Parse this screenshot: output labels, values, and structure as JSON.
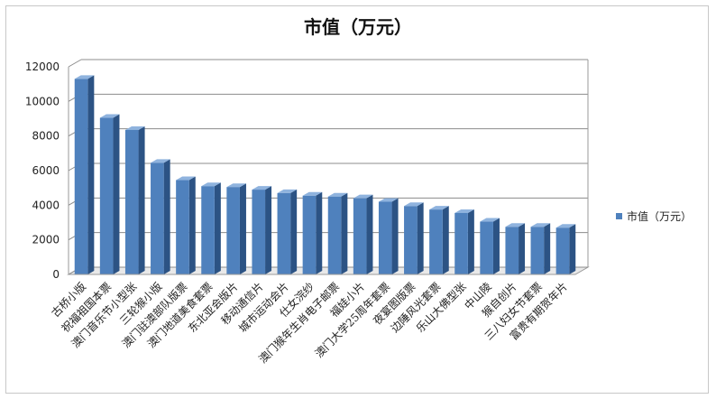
{
  "chart_data": {
    "type": "bar",
    "title": "市值（万元）",
    "categories": [
      "古桥小版",
      "祝福祖国本票",
      "澳门音乐节小型张",
      "三轮猴小版",
      "澳门驻澳部队版票",
      "澳门地道美食套票",
      "东北亚会版片",
      "移动通信片",
      "城市运动会片",
      "仕女浣纱",
      "澳门猴年生肖电子邮票",
      "福娃小片",
      "澳门大学25周年套票",
      "夜宴图版票",
      "边陲风光套票",
      "乐山大佛型张",
      "中山陵",
      "猴自创片",
      "三八妇女节套票",
      "富贵有期贺年片"
    ],
    "series": [
      {
        "name": "市值（万元）",
        "values": [
          11300,
          9050,
          8350,
          6450,
          5450,
          5100,
          5050,
          4900,
          4700,
          4550,
          4500,
          4400,
          4200,
          3950,
          3750,
          3550,
          3050,
          2750,
          2750,
          2700
        ]
      }
    ],
    "ylim": [
      0,
      12000
    ],
    "yticks": [
      0,
      2000,
      4000,
      6000,
      8000,
      10000,
      12000
    ],
    "grid": true,
    "legend_position": "right",
    "colors": {
      "bar_front": "#4f81bd",
      "bar_side": "#2c5384",
      "bar_top": "#8fb3de",
      "grid": "#8c8c8c",
      "wall": "#ffffff"
    }
  }
}
